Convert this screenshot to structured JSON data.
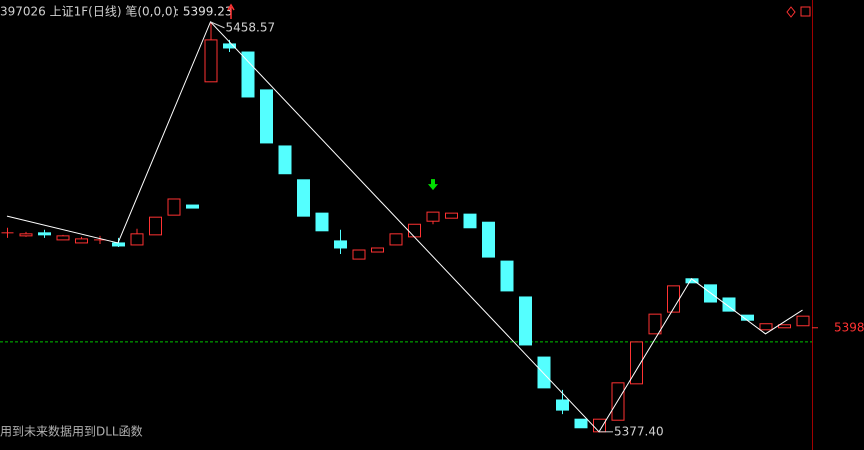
{
  "header": {
    "title": "397026 上证1F(日线) 笔(0,0,0)",
    "last_value": 5399.23,
    "last_value_label": ": 5399.23"
  },
  "footer": {
    "note": "用到未来数据用到DLL函数"
  },
  "chart_data": {
    "type": "candlestick",
    "open": [
      5416.8,
      5416.2,
      5416.8,
      5415.4,
      5414.8,
      5415.4,
      5414.8,
      5414.4,
      5416.4,
      5420.3,
      5422.3,
      5446.7,
      5454.2,
      5452.6,
      5445.1,
      5434.0,
      5427.3,
      5420.7,
      5415.2,
      5411.6,
      5413.0,
      5414.4,
      5416.0,
      5419.1,
      5419.7,
      5420.5,
      5418.9,
      5411.2,
      5404.1,
      5392.2,
      5383.7,
      5379.9,
      5377.4,
      5379.7,
      5386.9,
      5396.8,
      5401.1,
      5407.7,
      5406.5,
      5403.9,
      5400.5,
      5397.6,
      5398.0,
      5398.4
    ],
    "high": [
      5417.8,
      5417.0,
      5417.4,
      5416.4,
      5416.0,
      5416.2,
      5415.8,
      5417.6,
      5419.9,
      5423.5,
      5422.3,
      5458.57,
      5455.0,
      5452.6,
      5445.1,
      5434.0,
      5427.3,
      5420.7,
      5417.4,
      5413.4,
      5413.8,
      5416.6,
      5418.5,
      5420.9,
      5420.7,
      5420.5,
      5418.9,
      5411.2,
      5404.1,
      5392.2,
      5385.7,
      5379.9,
      5379.9,
      5387.1,
      5395.2,
      5400.7,
      5406.3,
      5407.7,
      5406.5,
      5403.9,
      5400.5,
      5398.8,
      5398.6,
      5400.3
    ],
    "low": [
      5415.8,
      5416.0,
      5415.8,
      5415.4,
      5414.8,
      5414.6,
      5414.0,
      5414.4,
      5416.4,
      5420.3,
      5421.7,
      5446.7,
      5452.6,
      5443.7,
      5434.6,
      5428.5,
      5420.1,
      5417.2,
      5412.6,
      5411.6,
      5413.0,
      5414.4,
      5416.0,
      5418.5,
      5419.7,
      5417.8,
      5412.0,
      5405.3,
      5394.6,
      5386.1,
      5380.9,
      5378.2,
      5377.4,
      5379.7,
      5386.9,
      5396.8,
      5401.1,
      5406.9,
      5403.1,
      5401.3,
      5399.5,
      5397.6,
      5398.0,
      5398.4
    ],
    "close": [
      5416.8,
      5416.6,
      5416.4,
      5416.2,
      5415.6,
      5415.4,
      5414.2,
      5416.6,
      5419.9,
      5423.5,
      5421.7,
      5455.0,
      5453.4,
      5443.7,
      5434.6,
      5428.5,
      5420.1,
      5417.2,
      5413.8,
      5413.4,
      5413.8,
      5416.6,
      5418.5,
      5420.9,
      5420.7,
      5417.8,
      5412.0,
      5405.3,
      5394.6,
      5386.1,
      5381.7,
      5378.2,
      5379.9,
      5387.1,
      5395.2,
      5400.7,
      5406.3,
      5406.9,
      5403.1,
      5401.3,
      5399.5,
      5398.8,
      5398.6,
      5400.3
    ],
    "up_color": "#ff3232",
    "down_color": "#54ffff",
    "zigzag": {
      "index": [
        0,
        6,
        11,
        32,
        37,
        41,
        43
      ],
      "values": [
        5420.1,
        5414.8,
        5458.57,
        5377.4,
        5407.7,
        5396.8,
        5401.5
      ],
      "color": "#ffffff"
    },
    "annotations": [
      {
        "index": 11,
        "value": 5458.57,
        "label": "5458.57"
      },
      {
        "index": 32,
        "value": 5377.4,
        "label": "5377.40"
      }
    ],
    "signals": [
      {
        "index": 23,
        "color": "#00e000"
      }
    ],
    "reference_line": {
      "value": 5395.2,
      "color": "#00c000"
    },
    "ylim": [
      5373.8,
      5462.9
    ],
    "yticks": [
      5398
    ],
    "axis_color": "#ff3232"
  }
}
